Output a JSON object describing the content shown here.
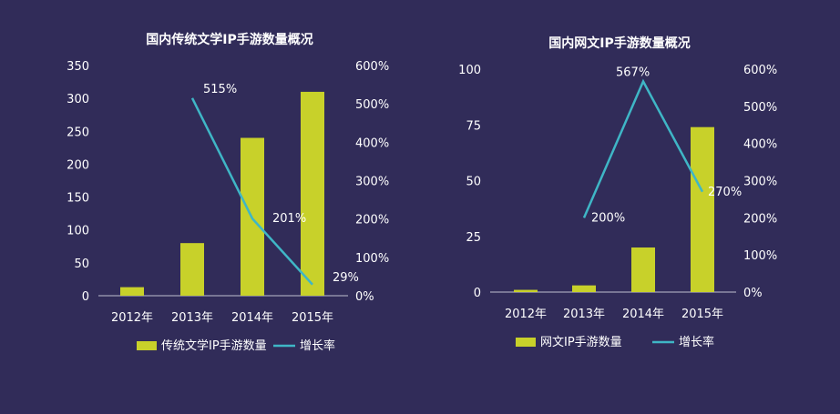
{
  "colors": {
    "background": "#312c59",
    "bar": "#c8d12a",
    "line": "#3fb6c6",
    "text": "#ffffff",
    "axis": "#bfbfd0"
  },
  "chart_data": [
    {
      "type": "bar",
      "title": "国内传统文学IP手游数量概况",
      "categories": [
        "2012年",
        "2013年",
        "2014年",
        "2015年"
      ],
      "series": [
        {
          "name": "传统文学IP手游数量",
          "type": "bar",
          "axis": "left",
          "values": [
            13,
            80,
            240,
            310
          ]
        },
        {
          "name": "增长率",
          "type": "line",
          "axis": "right",
          "values": [
            null,
            515,
            201,
            29
          ],
          "labels": [
            "",
            "515%",
            "201%",
            "29%"
          ]
        }
      ],
      "y_left": {
        "min": 0,
        "max": 350,
        "ticks": [
          "0",
          "50",
          "100",
          "150",
          "200",
          "250",
          "300",
          "350"
        ]
      },
      "y_right": {
        "min": 0,
        "max": 600,
        "ticks": [
          "0%",
          "100%",
          "200%",
          "300%",
          "400%",
          "500%",
          "600%"
        ]
      },
      "legend": {
        "position": "bottom",
        "bar_label": "传统文学IP手游数量",
        "line_label": "增长率"
      }
    },
    {
      "type": "bar",
      "title": "国内网文IP手游数量概况",
      "categories": [
        "2012年",
        "2013年",
        "2014年",
        "2015年"
      ],
      "series": [
        {
          "name": "网文IP手游数量",
          "type": "bar",
          "axis": "left",
          "values": [
            1,
            3,
            20,
            74
          ]
        },
        {
          "name": "增长率",
          "type": "line",
          "axis": "right",
          "values": [
            null,
            200,
            567,
            270
          ],
          "labels": [
            "",
            "200%",
            "567%",
            "270%"
          ]
        }
      ],
      "y_left": {
        "min": 0,
        "max": 100,
        "ticks": [
          "0",
          "25",
          "50",
          "75",
          "100"
        ]
      },
      "y_right": {
        "min": 0,
        "max": 600,
        "ticks": [
          "0%",
          "100%",
          "200%",
          "300%",
          "400%",
          "500%",
          "600%"
        ]
      },
      "legend": {
        "position": "bottom",
        "bar_label": "网文IP手游数量",
        "line_label": "增长率"
      }
    }
  ]
}
